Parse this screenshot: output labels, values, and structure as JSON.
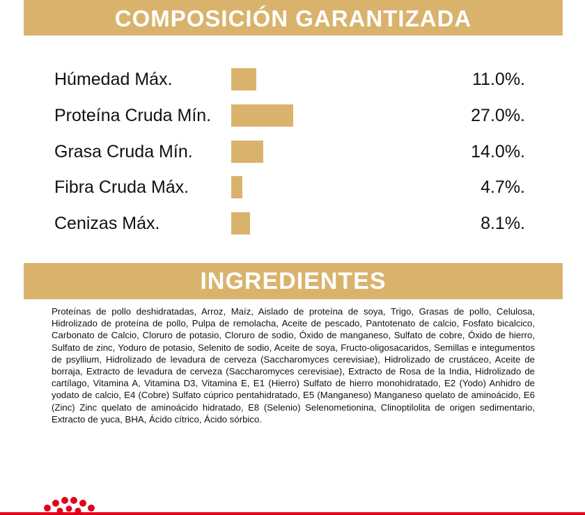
{
  "composition": {
    "title": "COMPOSICIÓN GARANTIZADA",
    "categories": [
      "Húmedad Máx.",
      "Proteína Cruda Mín.",
      "Grasa Cruda Mín.",
      "Fibra Cruda Máx.",
      "Cenizas Máx."
    ],
    "values": [
      11.0,
      27.0,
      14.0,
      4.7,
      8.1
    ],
    "value_labels": [
      "11.0%.",
      "27.0%.",
      "14.0%.",
      "4.7%.",
      "8.1%."
    ],
    "color": "#d9b36c"
  },
  "ingredients": {
    "title": "INGREDIENTES",
    "text": "Proteínas de pollo deshidratadas, Arroz, Maíz, Aislado de proteína de soya, Trigo, Grasas de pollo, Celulosa, Hidrolizado de proteína de pollo, Pulpa de remolacha, Aceite de pescado, Pantotenato de calcio, Fosfato bicalcico, Carbonato de Calcio, Cloruro de potasio, Cloruro de sodio, Óxido de manganeso, Sulfato de cobre, Óxido de hierro, Sulfato de zinc, Yoduro de potasio, Selenito de sodio, Aceite de soya, Fructo-oligosacaridos, Semillas e integumentos de psyllium, Hidrolizado de levadura de cerveza (Saccharomyces cerevisiae), Hidrolizado de crustáceo, Aceite de borraja, Extracto de levadura de cerveza (Saccharomyces cerevisiae), Extracto de Rosa de la India, Hidrolizado de cartílago, Vitamina A, Vitamina D3, Vitamina E, E1 (Hierro) Sulfato de hierro monohidratado, E2 (Yodo) Anhidro de yodato de calcio, E4 (Cobre) Sulfato cúprico pentahidratado, E5 (Manganeso) Manganeso quelato de aminoácido, E6 (Zinc) Zinc quelato de aminoácido hidratado, E8 (Selenio) Selenometionina, Clinoptilolita de origen sedimentario, Extracto de yuca, BHA, Ácido cítrico, Ácido sórbico."
  }
}
